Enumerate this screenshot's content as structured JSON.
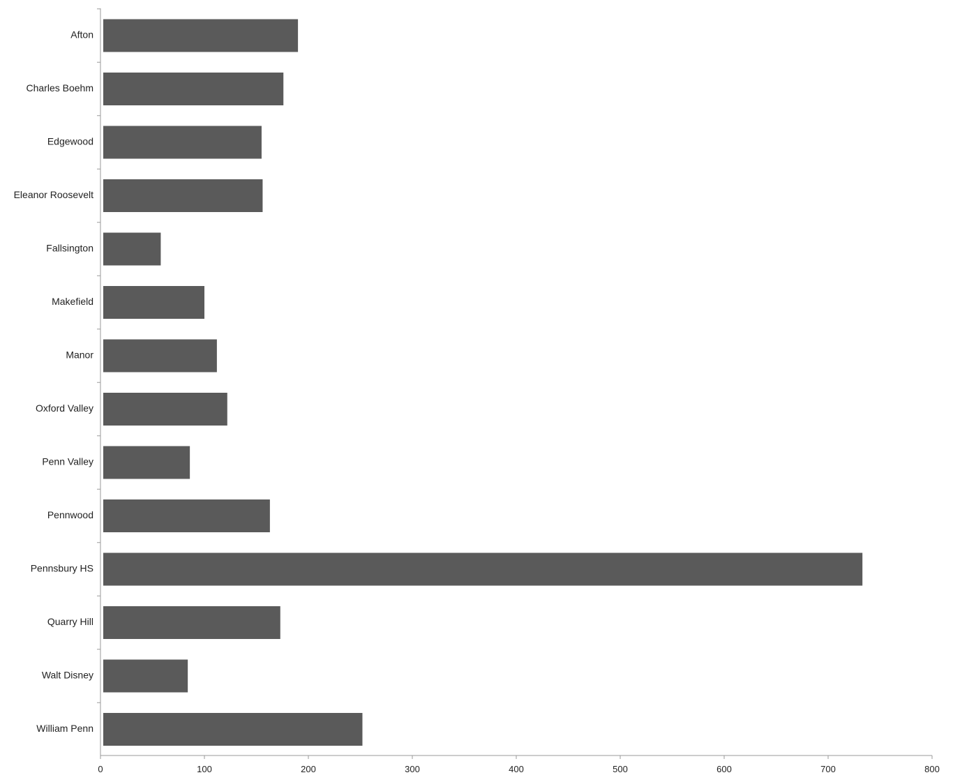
{
  "colors": {
    "bar": "#5a5a5a",
    "axis": "#9a9a9a",
    "text": "#222222",
    "background": "#ffffff"
  },
  "chart_data": {
    "type": "bar",
    "orientation": "horizontal",
    "title": "",
    "xlabel": "",
    "ylabel": "",
    "categories": [
      "Afton",
      "Charles Boehm",
      "Edgewood",
      "Eleanor Roosevelt",
      "Fallsington",
      "Makefield",
      "Manor",
      "Oxford Valley",
      "Penn Valley",
      "Pennwood",
      "Pennsbury HS",
      "Quarry Hill",
      "Walt Disney",
      "William Penn"
    ],
    "values": [
      190,
      176,
      155,
      156,
      58,
      100,
      112,
      122,
      86,
      163,
      733,
      173,
      84,
      252
    ],
    "xlim": [
      0,
      800
    ],
    "xticks": [
      "0",
      "100",
      "200",
      "300",
      "400",
      "500",
      "600",
      "700",
      "800"
    ],
    "grid": false,
    "legend": "none"
  }
}
